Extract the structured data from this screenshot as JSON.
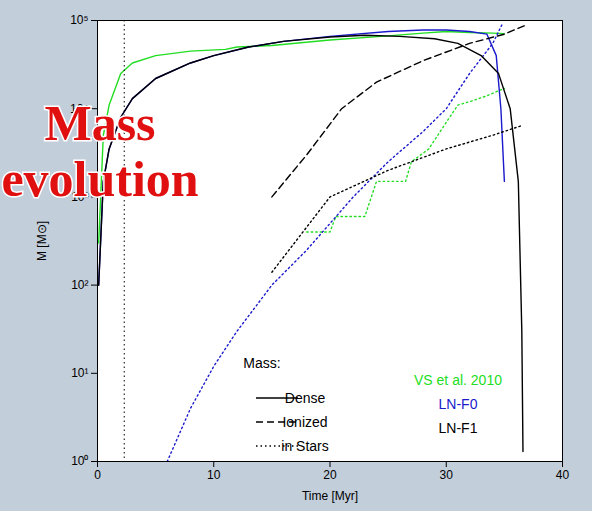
{
  "chart_data": {
    "type": "line",
    "annotation": "Mass evolution",
    "x_label": "Time [Myr]",
    "y_label": "M [M⊙]",
    "log": "y",
    "xlim": [
      0,
      40
    ],
    "xticks": [
      0,
      10,
      20,
      30,
      40
    ],
    "ylim": [
      1,
      100000
    ],
    "yticks": [
      {
        "value": 1,
        "label": "10⁰"
      },
      {
        "value": 10,
        "label": "10¹"
      },
      {
        "value": 100,
        "label": "10²"
      },
      {
        "value": 1000,
        "label": "10³"
      },
      {
        "value": 10000,
        "label": "10⁴"
      },
      {
        "value": 100000,
        "label": "10⁵"
      }
    ],
    "vline": 2.3,
    "legend": "bottom",
    "legend_title": "Mass:",
    "legend_styles": [
      {
        "label": "Dense",
        "line_style": "solid"
      },
      {
        "label": "Ionized",
        "line_style": "dashed"
      },
      {
        "label": "in Stars",
        "line_style": "dotted"
      }
    ],
    "legend_names": [
      {
        "name": "VS et al. 2010",
        "color": "#22dd22"
      },
      {
        "name": "LN-F0",
        "color": "#1a1acc"
      },
      {
        "name": "LN-F1",
        "color": "#000000"
      }
    ],
    "series": [
      {
        "name": "VS et al. 2010",
        "component": "Dense",
        "color": "#22dd22",
        "line_style": "solid",
        "x": [
          0.1,
          0.5,
          1,
          2,
          3,
          5,
          8,
          11,
          12,
          15,
          20,
          25,
          28,
          30,
          32,
          34,
          35
        ],
        "values": [
          300,
          5000,
          11000,
          25000,
          33000,
          40000,
          45000,
          47000,
          50000,
          52000,
          60000,
          67000,
          72000,
          75000,
          73000,
          72000,
          71000
        ]
      },
      {
        "name": "VS et al. 2010",
        "component": "in Stars",
        "color": "#22dd22",
        "line_style": "dotted",
        "x": [
          18,
          20,
          20.5,
          23,
          24,
          26.5,
          27,
          28.5,
          30,
          31,
          32,
          33.5,
          34.5,
          35
        ],
        "values": [
          400,
          400,
          600,
          600,
          1500,
          1500,
          2500,
          3500,
          7000,
          11000,
          12000,
          14000,
          16000,
          17000
        ]
      },
      {
        "name": "LN-F0",
        "component": "Dense",
        "color": "#1a1acc",
        "line_style": "solid",
        "x": [
          0.1,
          0.5,
          1,
          2,
          3,
          5,
          8,
          10,
          13,
          16,
          20,
          25,
          28,
          30,
          32,
          33.5,
          34.3,
          34.7,
          35
        ],
        "values": [
          100,
          1500,
          3500,
          8000,
          13000,
          22000,
          33000,
          40000,
          50000,
          58000,
          66000,
          75000,
          78000,
          78000,
          75000,
          70000,
          40000,
          10000,
          1500
        ]
      },
      {
        "name": "LN-F0",
        "component": "in Stars",
        "color": "#1a1acc",
        "line_style": "dotted",
        "x": [
          6,
          8,
          10,
          12,
          15,
          18,
          20,
          22,
          25,
          28,
          30,
          32,
          34,
          34.8
        ],
        "values": [
          1,
          4,
          12,
          30,
          100,
          250,
          500,
          1000,
          2500,
          5500,
          10000,
          25000,
          55000,
          90000
        ]
      },
      {
        "name": "LN-F1",
        "component": "Dense",
        "color": "#000000",
        "line_style": "solid",
        "x": [
          0.1,
          0.5,
          1,
          2,
          3,
          5,
          8,
          10,
          13,
          16,
          20,
          23,
          26,
          29,
          31,
          33,
          34.5,
          35.5,
          36.2,
          36.5,
          36.6
        ],
        "values": [
          100,
          1500,
          3500,
          8000,
          13000,
          22000,
          33000,
          40000,
          50000,
          58000,
          65000,
          68000,
          66000,
          62000,
          55000,
          40000,
          25000,
          10000,
          1500,
          30,
          1.3
        ]
      },
      {
        "name": "LN-F1",
        "component": "Ionized",
        "color": "#000000",
        "line_style": "dashed",
        "x": [
          15,
          18,
          21,
          24,
          28,
          32,
          35,
          36.7
        ],
        "values": [
          1000,
          3000,
          10000,
          20000,
          35000,
          55000,
          70000,
          87000
        ]
      },
      {
        "name": "LN-F1",
        "component": "in Stars",
        "color": "#000000",
        "line_style": "dotted",
        "x": [
          15,
          20,
          25,
          30,
          34,
          36.6
        ],
        "values": [
          140,
          1000,
          2000,
          3500,
          5000,
          6500
        ]
      }
    ]
  }
}
